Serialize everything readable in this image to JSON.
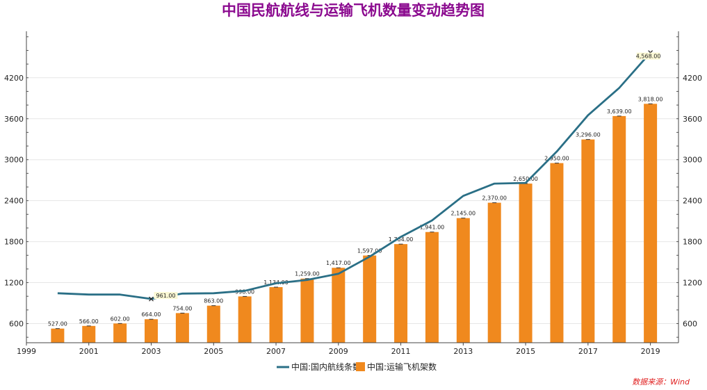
{
  "chart_data": {
    "type": "bar",
    "title": "中国民航航线与运输飞机数量变动趋势图",
    "source": "数据来源：Wind",
    "x_tick_labels": [
      "1999",
      "2001",
      "2003",
      "2005",
      "2007",
      "2009",
      "2011",
      "2013",
      "2015",
      "2017",
      "2019"
    ],
    "y_ticks": [
      600,
      1200,
      1800,
      2400,
      3000,
      3600,
      4200
    ],
    "y_tick_labels": [
      "600",
      "1200",
      "1800",
      "2400",
      "3000",
      "3600",
      "4200"
    ],
    "ylim": [
      320,
      4880
    ],
    "xlim": [
      1999,
      2019.9
    ],
    "grid": true,
    "legend_position": "bottom",
    "series": [
      {
        "name": "中国:国内航线条数",
        "type": "line",
        "color": "#2a6f86",
        "x": [
          2000,
          2001,
          2002,
          2003,
          2004,
          2005,
          2006,
          2007,
          2008,
          2009,
          2010,
          2011,
          2012,
          2013,
          2014,
          2015,
          2016,
          2017,
          2018,
          2019
        ],
        "values": [
          1045,
          1025,
          1025,
          961,
          1040,
          1045,
          1080,
          1190,
          1240,
          1330,
          1580,
          1870,
          2110,
          2470,
          2650,
          2660,
          3120,
          3650,
          4050,
          4568
        ],
        "data_labels": {
          "2003": "961.00",
          "2019": "4,568.00"
        }
      },
      {
        "name": "中国:运输飞机架数",
        "type": "bar",
        "color": "#f0891e",
        "x": [
          2000,
          2001,
          2002,
          2003,
          2004,
          2005,
          2006,
          2007,
          2008,
          2009,
          2010,
          2011,
          2012,
          2013,
          2014,
          2015,
          2016,
          2017,
          2018,
          2019
        ],
        "values": [
          527,
          566,
          602,
          664,
          754,
          863,
          998,
          1134,
          1259,
          1417,
          1597,
          1764,
          1941,
          2145,
          2370,
          2650,
          2950,
          3296,
          3639,
          3818
        ],
        "data_labels": [
          "527.00",
          "566.00",
          "602.00",
          "664.00",
          "754.00",
          "863.00",
          "998.00",
          "1,134.00",
          "1,259.00",
          "1,417.00",
          "1,597.00",
          "1,764.00",
          "1,941.00",
          "2,145.00",
          "2,370.00",
          "2,650.00",
          "2,950.00",
          "3,296.00",
          "3,639.00",
          "3,818.00"
        ]
      }
    ]
  }
}
